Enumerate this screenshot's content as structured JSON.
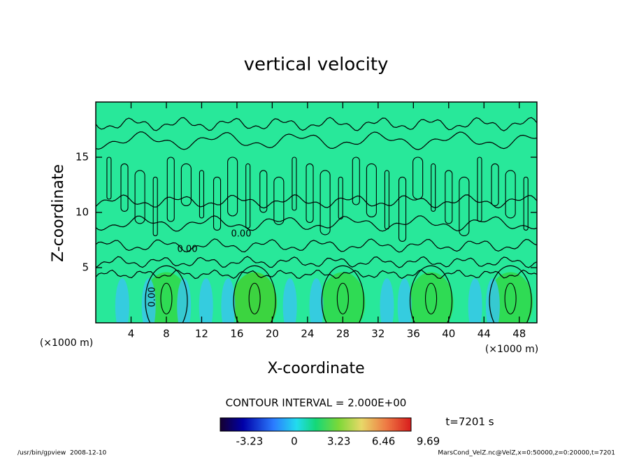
{
  "chart_data": {
    "type": "contour",
    "title": "vertical velocity",
    "x_label": "X-coordinate",
    "y_label": "Z-coordinate",
    "x_unit": "(×1000 m)",
    "y_unit": "(×1000 m)",
    "xlim": [
      0,
      50
    ],
    "ylim": [
      0,
      20
    ],
    "xticks": [
      4,
      8,
      12,
      16,
      20,
      24,
      28,
      32,
      36,
      40,
      44,
      48
    ],
    "yticks": [
      5,
      10,
      15
    ],
    "contour_labels": [
      "0.00",
      "0.00",
      "0.00"
    ],
    "contour_interval": "CONTOUR INTERVAL = 2.000E+00",
    "time": "t=7201 s",
    "colorbar": {
      "lim": [
        -5.35,
        8.45
      ],
      "ticks": [
        -3.23,
        0,
        3.23,
        6.46,
        9.69
      ]
    }
  },
  "footer": {
    "left": "/usr/bin/gpview  2008-12-10",
    "right": "MarsCond_VelZ.nc@VelZ,x=0:50000,z=0:20000,t=7201"
  }
}
